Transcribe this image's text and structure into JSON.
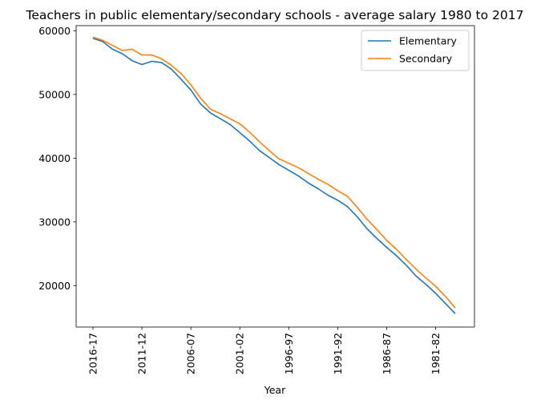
{
  "chart_data": {
    "type": "line",
    "title": "Teachers in public elementary/secondary schools - average salary 1980 to 2017",
    "xlabel": "Year",
    "ylabel": "",
    "ylim": [
      13500,
      60800
    ],
    "yticks": [
      20000,
      30000,
      40000,
      50000,
      60000
    ],
    "x_tick_labels": [
      "2016-17",
      "2011-12",
      "2006-07",
      "2001-02",
      "1996-97",
      "1991-92",
      "1986-87",
      "1981-82"
    ],
    "x": [
      "2016-17",
      "2015-16",
      "2014-15",
      "2013-14",
      "2012-13",
      "2011-12",
      "2010-11",
      "2009-10",
      "2008-09",
      "2007-08",
      "2006-07",
      "2005-06",
      "2004-05",
      "2003-04",
      "2002-03",
      "2001-02",
      "2000-01",
      "1999-00",
      "1998-99",
      "1997-98",
      "1996-97",
      "1995-96",
      "1994-95",
      "1993-94",
      "1992-93",
      "1991-92",
      "1990-91",
      "1989-90",
      "1988-89",
      "1987-88",
      "1986-87",
      "1985-86",
      "1984-85",
      "1983-84",
      "1982-83",
      "1981-82",
      "1980-81",
      "1979-80"
    ],
    "series": [
      {
        "name": "Elementary",
        "color": "#1f77b4",
        "values": [
          58800,
          58300,
          57100,
          56400,
          55300,
          54700,
          55200,
          55000,
          54000,
          52400,
          50700,
          48500,
          47100,
          46200,
          45300,
          44000,
          42700,
          41200,
          40100,
          39000,
          38100,
          37200,
          36100,
          35200,
          34200,
          33400,
          32400,
          30800,
          28900,
          27400,
          26000,
          24700,
          23200,
          21500,
          20200,
          18800,
          17200,
          15600
        ]
      },
      {
        "name": "Secondary",
        "color": "#ff7f0e",
        "values": [
          59000,
          58500,
          57700,
          56900,
          57100,
          56200,
          56200,
          55600,
          54600,
          53300,
          51500,
          49400,
          47700,
          47000,
          46200,
          45400,
          44100,
          42600,
          41200,
          39900,
          39200,
          38500,
          37600,
          36700,
          35900,
          34900,
          34000,
          32300,
          30400,
          28800,
          27100,
          25700,
          24100,
          22600,
          21200,
          19900,
          18300,
          16500
        ]
      }
    ],
    "grid": false,
    "legend_position": "top-right"
  }
}
